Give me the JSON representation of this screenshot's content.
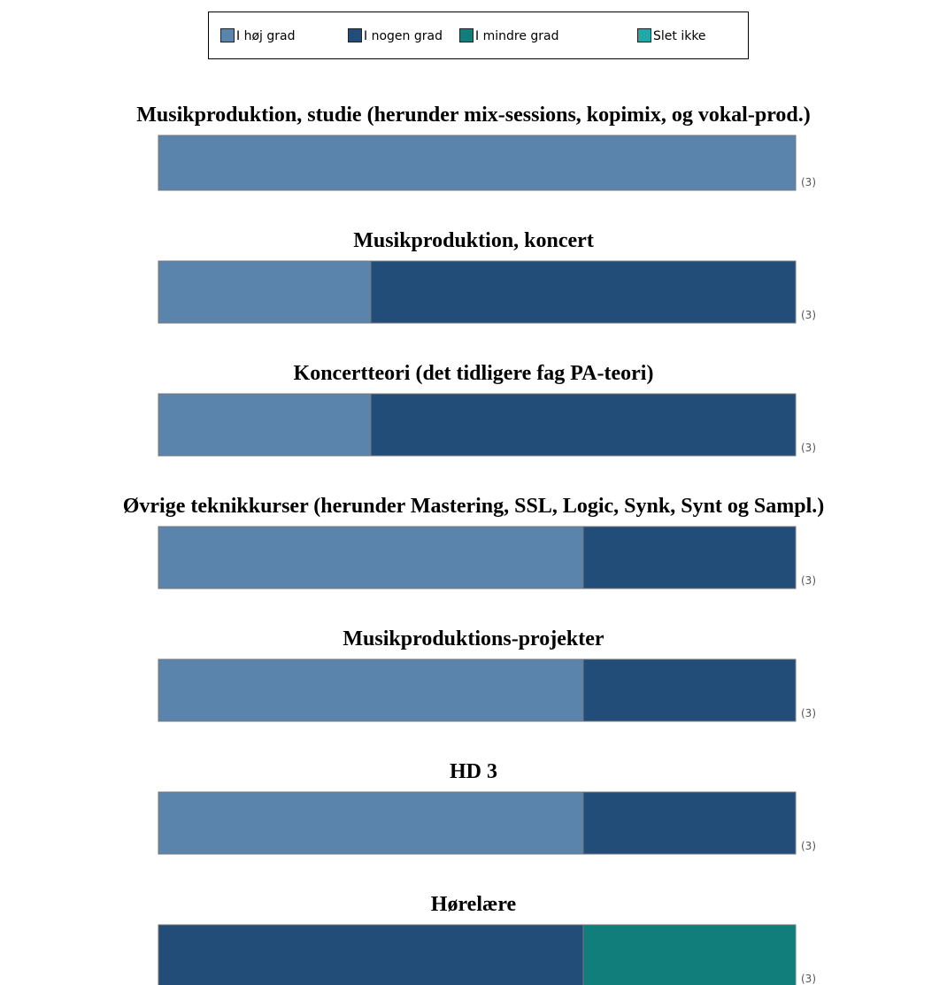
{
  "chart_data": {
    "type": "stacked_bar_100",
    "categories": [
      "Musikproduktion, studie (herunder mix-sessions, kopimix, og vokal-prod.)",
      "Musikproduktion, koncert",
      "Koncertteori (det tidligere fag PA-teori)",
      "Øvrige teknikkurser (herunder Mastering, SSL, Logic, Synk, Synt og Sampl.)",
      "Musikproduktions-projekter",
      "HD 3",
      "Hørelære"
    ],
    "series": [
      {
        "name": "I høj grad",
        "color": "#5b84ad",
        "values": [
          3,
          1,
          1,
          2,
          2,
          2,
          0
        ]
      },
      {
        "name": "I nogen grad",
        "color": "#234d79",
        "values": [
          0,
          2,
          2,
          1,
          1,
          1,
          2
        ]
      },
      {
        "name": "I mindre grad",
        "color": "#127e7c",
        "values": [
          0,
          0,
          0,
          0,
          0,
          0,
          1
        ]
      },
      {
        "name": "Slet ikke",
        "color": "#1fa8a8",
        "values": [
          0,
          0,
          0,
          0,
          0,
          0,
          0
        ]
      }
    ],
    "totals": [
      3,
      3,
      3,
      3,
      3,
      3,
      3
    ],
    "total_labels": [
      "(3)",
      "(3)",
      "(3)",
      "(3)",
      "(3)",
      "(3)",
      "(3)"
    ],
    "legend": "top"
  }
}
